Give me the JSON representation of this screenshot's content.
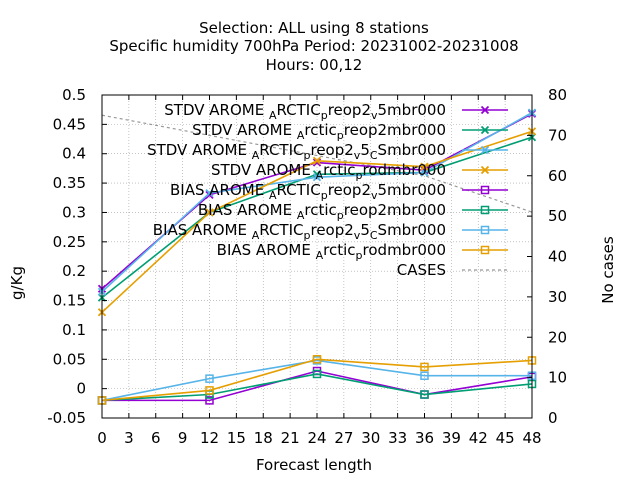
{
  "chart_data": {
    "type": "line",
    "title_lines": [
      "Selection: ALL using     8 stations",
      "Specific humidity 700hPa   Period: 20231002-20231008",
      "Hours:  00,12"
    ],
    "xlabel": "Forecast length",
    "ylabel": "g/Kg",
    "y2label": "No cases",
    "xlim": [
      0,
      48
    ],
    "ylim": [
      -0.05,
      0.5
    ],
    "y2lim": [
      0,
      80
    ],
    "xticks": [
      0,
      3,
      6,
      9,
      12,
      15,
      18,
      21,
      24,
      27,
      30,
      33,
      36,
      39,
      42,
      45,
      48
    ],
    "yticks": [
      -0.05,
      0,
      0.05,
      0.1,
      0.15,
      0.2,
      0.25,
      0.3,
      0.35,
      0.4,
      0.45,
      0.5
    ],
    "ytick_labels": [
      "-0.05",
      "0",
      "0.05",
      "0.1",
      "0.15",
      "0.2",
      "0.25",
      "0.3",
      "0.35",
      "0.4",
      "0.45",
      "0.5"
    ],
    "y2ticks": [
      0,
      10,
      20,
      30,
      40,
      50,
      60,
      70,
      80
    ],
    "grid": true,
    "legend_position": "top-right",
    "x": [
      0,
      12,
      24,
      36,
      48
    ],
    "series": [
      {
        "name_main": "STDV AROME",
        "name_parts": [
          [
            "A",
            "sub"
          ],
          [
            "RCTIC",
            ""
          ],
          [
            "p",
            "sub"
          ],
          [
            "reop2",
            ""
          ],
          [
            "v",
            "sub"
          ],
          [
            "5mbr000",
            ""
          ]
        ],
        "color": "#9400d3",
        "marker": "x",
        "values": [
          0.17,
          0.33,
          0.385,
          0.372,
          0.468
        ]
      },
      {
        "name_main": "STDV AROME",
        "name_parts": [
          [
            "A",
            "sub"
          ],
          [
            "rctic",
            ""
          ],
          [
            "p",
            "sub"
          ],
          [
            "reop2mbr000",
            ""
          ]
        ],
        "color": "#009e73",
        "marker": "x",
        "values": [
          0.155,
          0.3,
          0.365,
          0.368,
          0.428
        ]
      },
      {
        "name_main": "STDV AROME",
        "name_parts": [
          [
            "A",
            "sub"
          ],
          [
            "RCTIC",
            ""
          ],
          [
            "p",
            "sub"
          ],
          [
            "reop2",
            ""
          ],
          [
            "v",
            "sub"
          ],
          [
            "5",
            ""
          ],
          [
            "C",
            "sub"
          ],
          [
            "Smbr000",
            ""
          ]
        ],
        "color": "#56b4e9",
        "marker": "x",
        "values": [
          0.165,
          0.333,
          0.36,
          0.368,
          0.47
        ]
      },
      {
        "name_main": "STDV AROME",
        "name_parts": [
          [
            "A",
            "sub"
          ],
          [
            "rctic",
            ""
          ],
          [
            "p",
            "sub"
          ],
          [
            "rodmbr000",
            ""
          ]
        ],
        "color": "#e69f00",
        "marker": "x",
        "values": [
          0.13,
          0.3,
          0.388,
          0.378,
          0.438
        ]
      },
      {
        "name_main": "BIAS AROME",
        "name_parts": [
          [
            "A",
            "sub"
          ],
          [
            "RCTIC",
            ""
          ],
          [
            "p",
            "sub"
          ],
          [
            "reop2",
            ""
          ],
          [
            "v",
            "sub"
          ],
          [
            "5mbr000",
            ""
          ]
        ],
        "color": "#9400d3",
        "marker": "square",
        "values": [
          -0.02,
          -0.02,
          0.03,
          -0.01,
          0.02
        ]
      },
      {
        "name_main": "BIAS AROME",
        "name_parts": [
          [
            "A",
            "sub"
          ],
          [
            "rctic",
            ""
          ],
          [
            "p",
            "sub"
          ],
          [
            "reop2mbr000",
            ""
          ]
        ],
        "color": "#009e73",
        "marker": "square",
        "values": [
          -0.02,
          -0.01,
          0.025,
          -0.01,
          0.008
        ]
      },
      {
        "name_main": "BIAS AROME",
        "name_parts": [
          [
            "A",
            "sub"
          ],
          [
            "RCTIC",
            ""
          ],
          [
            "p",
            "sub"
          ],
          [
            "reop2",
            ""
          ],
          [
            "v",
            "sub"
          ],
          [
            "5",
            ""
          ],
          [
            "C",
            "sub"
          ],
          [
            "Smbr000",
            ""
          ]
        ],
        "color": "#56b4e9",
        "marker": "square",
        "values": [
          -0.02,
          0.017,
          0.048,
          0.022,
          0.022
        ]
      },
      {
        "name_main": "BIAS AROME",
        "name_parts": [
          [
            "A",
            "sub"
          ],
          [
            "rctic",
            ""
          ],
          [
            "p",
            "sub"
          ],
          [
            "rodmbr000",
            ""
          ]
        ],
        "color": "#e69f00",
        "marker": "square",
        "values": [
          -0.02,
          -0.003,
          0.05,
          0.037,
          0.048
        ]
      },
      {
        "name_main": "CASES",
        "name_parts": [],
        "color": "#999999",
        "marker": "none",
        "dashed": true,
        "axis": "y2",
        "values": [
          75,
          70,
          65,
          60,
          51
        ]
      }
    ]
  }
}
